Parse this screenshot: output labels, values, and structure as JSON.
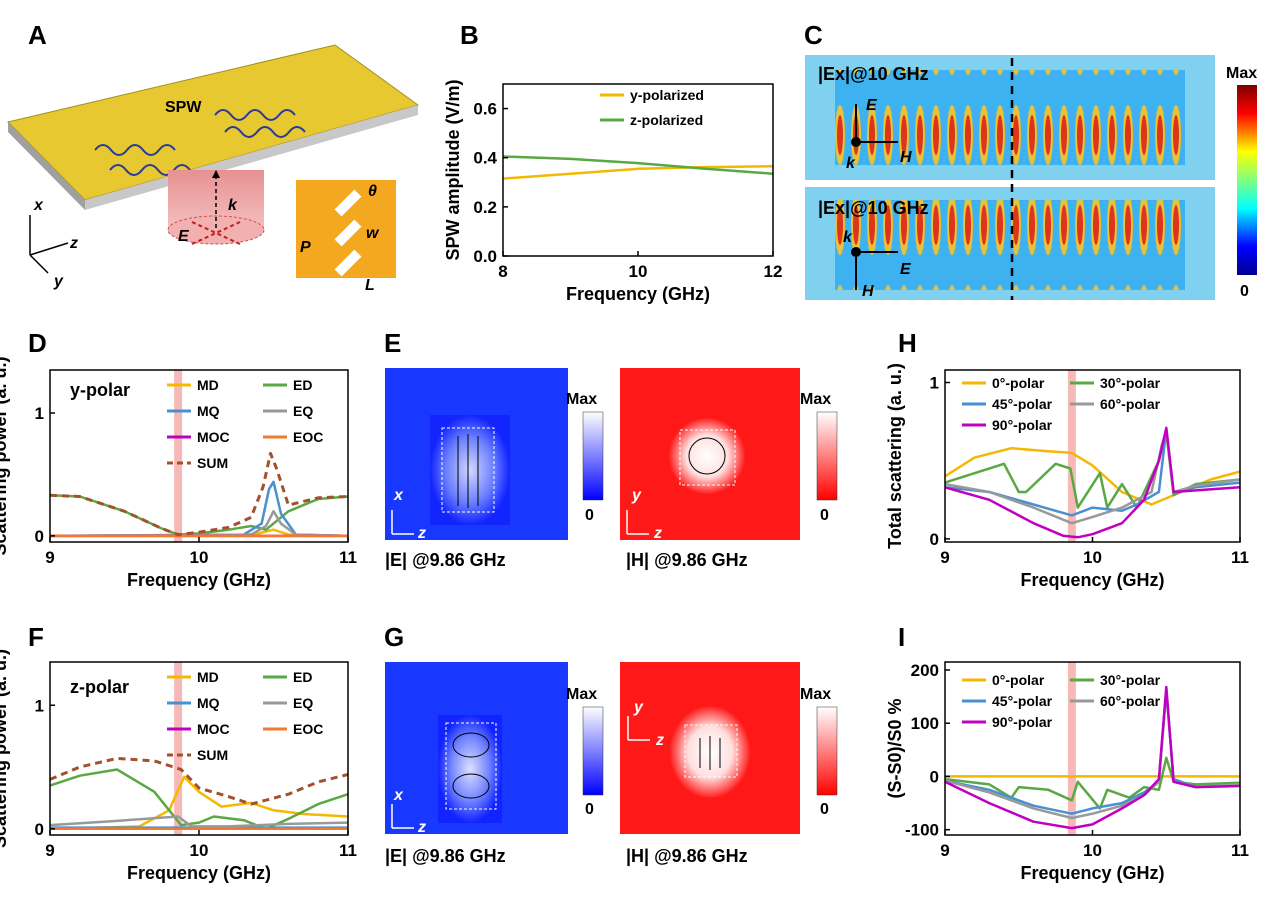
{
  "panel_labels": {
    "A": "A",
    "B": "B",
    "C": "C",
    "D": "D",
    "E": "E",
    "F": "F",
    "G": "G",
    "H": "H",
    "I": "I"
  },
  "colors": {
    "MD": "#f5b800",
    "ED": "#5aa843",
    "MQ": "#4a90d0",
    "EQ": "#999999",
    "MOC": "#c000c0",
    "EOC": "#f07a30",
    "SUM": "#a0522d",
    "highlight": "#f4a0a0",
    "p0": "#f5b800",
    "p30": "#5aa843",
    "p45": "#4a90d0",
    "p60": "#999999",
    "p90": "#c000c0"
  },
  "panelA": {
    "spw": "SPW",
    "k": "k",
    "E": "E",
    "theta": "θ",
    "w": "w",
    "P": "P",
    "L": "L",
    "axis_x": "x",
    "axis_y": "y",
    "axis_z": "z"
  },
  "panelC": {
    "top_label": "|Ex|@10 GHz",
    "bottom_label": "|Ex|@10 GHz",
    "top_E": "E",
    "top_H": "H",
    "top_k": "k",
    "bot_k": "k",
    "bot_E": "E",
    "bot_H": "H",
    "cb_max": "Max",
    "cb_min": "0"
  },
  "panelE": {
    "e_caption": "|E| @9.86 GHz",
    "h_caption": "|H| @9.86 GHz",
    "cb_max": "Max",
    "cb_min": "0",
    "ax_x": "x",
    "ax_z": "z",
    "ax_y": "y"
  },
  "panelG": {
    "e_caption": "|E| @9.86 GHz",
    "h_caption": "|H| @9.86 GHz",
    "cb_max": "Max",
    "cb_min": "0",
    "ax_x": "x",
    "ax_z": "z",
    "ax_y": "y"
  },
  "chart_data": [
    {
      "id": "B",
      "type": "line",
      "xlabel": "Frequency (GHz)",
      "ylabel": "SPW amplitude (V/m)",
      "xlim": [
        8,
        12
      ],
      "ylim": [
        0,
        0.7
      ],
      "xticks": [
        8,
        10,
        12
      ],
      "yticks": [
        0.0,
        0.2,
        0.4,
        0.6
      ],
      "ytick_labels": [
        "0.0",
        "0.2",
        "0.4",
        "0.6"
      ],
      "legend_position": "top-right",
      "series": [
        {
          "name": "y-polarized",
          "color": "#f5b800",
          "x": [
            8,
            9,
            10,
            11,
            12
          ],
          "y": [
            0.315,
            0.335,
            0.355,
            0.362,
            0.365
          ]
        },
        {
          "name": "z-polarized",
          "color": "#5aa843",
          "x": [
            8,
            9,
            10,
            11,
            12
          ],
          "y": [
            0.405,
            0.395,
            0.378,
            0.355,
            0.335
          ]
        }
      ]
    },
    {
      "id": "D",
      "type": "line",
      "annotation": "y-polar",
      "xlabel": "Frequency (GHz)",
      "ylabel": "Scattering power (a. u.)",
      "xlim": [
        9,
        11
      ],
      "ylim": [
        -0.05,
        1.35
      ],
      "xticks": [
        9,
        10,
        11
      ],
      "yticks": [
        0,
        1
      ],
      "highlight_x": 9.86,
      "series": [
        {
          "name": "MD",
          "color": "#f5b800",
          "x": [
            9,
            10.2,
            10.4,
            10.5,
            10.6,
            11
          ],
          "y": [
            0,
            0,
            0.02,
            0.05,
            0.01,
            0
          ]
        },
        {
          "name": "ED",
          "color": "#5aa843",
          "x": [
            9,
            9.2,
            9.5,
            9.75,
            9.86,
            10.0,
            10.2,
            10.35,
            10.45,
            10.6,
            10.8,
            11
          ],
          "y": [
            0.33,
            0.32,
            0.2,
            0.06,
            0.01,
            0.02,
            0.05,
            0.08,
            0.05,
            0.2,
            0.3,
            0.32
          ]
        },
        {
          "name": "MQ",
          "color": "#4a90d0",
          "x": [
            9,
            10.3,
            10.42,
            10.47,
            10.5,
            10.55,
            10.65,
            11
          ],
          "y": [
            0,
            0.01,
            0.1,
            0.38,
            0.44,
            0.18,
            0.01,
            0
          ]
        },
        {
          "name": "EQ",
          "color": "#999999",
          "x": [
            9,
            10.35,
            10.45,
            10.5,
            10.55,
            10.65,
            11
          ],
          "y": [
            0,
            0.01,
            0.08,
            0.2,
            0.1,
            0.01,
            0
          ]
        },
        {
          "name": "MOC",
          "color": "#c000c0",
          "x": [
            9,
            11
          ],
          "y": [
            0,
            0
          ]
        },
        {
          "name": "EOC",
          "color": "#f07a30",
          "x": [
            9,
            11
          ],
          "y": [
            0,
            0
          ]
        },
        {
          "name": "SUM",
          "color": "#a0522d",
          "dashed": true,
          "x": [
            9,
            9.2,
            9.5,
            9.75,
            9.86,
            10.0,
            10.2,
            10.35,
            10.43,
            10.48,
            10.52,
            10.6,
            10.8,
            11
          ],
          "y": [
            0.33,
            0.32,
            0.2,
            0.06,
            0.01,
            0.03,
            0.07,
            0.15,
            0.4,
            0.67,
            0.55,
            0.25,
            0.31,
            0.32
          ]
        }
      ]
    },
    {
      "id": "F",
      "type": "line",
      "annotation": "z-polar",
      "xlabel": "Frequency (GHz)",
      "ylabel": "Scattering power (a. u.)",
      "xlim": [
        9,
        11
      ],
      "ylim": [
        -0.05,
        1.35
      ],
      "xticks": [
        9,
        10,
        11
      ],
      "yticks": [
        0,
        1
      ],
      "highlight_x": 9.86,
      "series": [
        {
          "name": "MD",
          "color": "#f5b800",
          "x": [
            9,
            9.6,
            9.8,
            9.9,
            10.0,
            10.15,
            10.35,
            10.5,
            10.7,
            11
          ],
          "y": [
            0,
            0.02,
            0.15,
            0.42,
            0.3,
            0.18,
            0.21,
            0.15,
            0.12,
            0.1
          ]
        },
        {
          "name": "ED",
          "color": "#5aa843",
          "x": [
            9,
            9.2,
            9.45,
            9.7,
            9.88,
            10.0,
            10.1,
            10.3,
            10.45,
            10.6,
            10.8,
            11
          ],
          "y": [
            0.35,
            0.43,
            0.48,
            0.3,
            0.03,
            0.05,
            0.1,
            0.07,
            0.0,
            0.08,
            0.2,
            0.28
          ]
        },
        {
          "name": "MQ",
          "color": "#4a90d0",
          "x": [
            9,
            11
          ],
          "y": [
            0.01,
            0.01
          ]
        },
        {
          "name": "EQ",
          "color": "#999999",
          "x": [
            9,
            9.4,
            9.86,
            9.95,
            10.2,
            10.6,
            11
          ],
          "y": [
            0.03,
            0.06,
            0.1,
            0.02,
            0.02,
            0.04,
            0.05
          ]
        },
        {
          "name": "MOC",
          "color": "#c000c0",
          "x": [
            9,
            11
          ],
          "y": [
            0,
            0
          ]
        },
        {
          "name": "EOC",
          "color": "#f07a30",
          "x": [
            9,
            11
          ],
          "y": [
            0,
            0
          ]
        },
        {
          "name": "SUM",
          "color": "#a0522d",
          "dashed": true,
          "x": [
            9,
            9.2,
            9.45,
            9.7,
            9.88,
            10.0,
            10.2,
            10.35,
            10.6,
            10.8,
            11
          ],
          "y": [
            0.4,
            0.5,
            0.57,
            0.55,
            0.48,
            0.33,
            0.26,
            0.2,
            0.28,
            0.38,
            0.44
          ]
        }
      ]
    },
    {
      "id": "H",
      "type": "line",
      "xlabel": "Frequency (GHz)",
      "ylabel": "Total scattering (a. u.)",
      "xlim": [
        9,
        11
      ],
      "ylim": [
        -0.02,
        1.08
      ],
      "xticks": [
        9,
        10,
        11
      ],
      "yticks": [
        0,
        1
      ],
      "highlight_x": 9.86,
      "series": [
        {
          "name": "0°-polar",
          "color": "#f5b800",
          "x": [
            9,
            9.2,
            9.45,
            9.7,
            9.86,
            10.0,
            10.2,
            10.4,
            10.6,
            10.8,
            11
          ],
          "y": [
            0.4,
            0.52,
            0.58,
            0.56,
            0.55,
            0.47,
            0.3,
            0.22,
            0.3,
            0.38,
            0.43
          ]
        },
        {
          "name": "30°-polar",
          "color": "#5aa843",
          "x": [
            9,
            9.2,
            9.4,
            9.5,
            9.55,
            9.75,
            9.85,
            9.9,
            10.05,
            10.1,
            10.2,
            10.3,
            10.45,
            10.5,
            10.55,
            10.7,
            11
          ],
          "y": [
            0.36,
            0.42,
            0.48,
            0.3,
            0.3,
            0.48,
            0.45,
            0.2,
            0.42,
            0.2,
            0.35,
            0.2,
            0.5,
            0.68,
            0.28,
            0.35,
            0.38
          ]
        },
        {
          "name": "45°-polar",
          "color": "#4a90d0",
          "x": [
            9,
            9.3,
            9.6,
            9.86,
            10.0,
            10.2,
            10.3,
            10.45,
            10.5,
            10.55,
            10.7,
            11
          ],
          "y": [
            0.33,
            0.3,
            0.22,
            0.15,
            0.2,
            0.18,
            0.22,
            0.3,
            0.7,
            0.3,
            0.33,
            0.36
          ]
        },
        {
          "name": "60°-polar",
          "color": "#999999",
          "x": [
            9,
            9.3,
            9.6,
            9.86,
            10.0,
            10.2,
            10.4,
            10.47,
            10.5,
            10.55,
            10.7,
            11
          ],
          "y": [
            0.35,
            0.3,
            0.2,
            0.1,
            0.14,
            0.2,
            0.3,
            0.6,
            0.69,
            0.3,
            0.34,
            0.38
          ]
        },
        {
          "name": "90°-polar",
          "color": "#c000c0",
          "x": [
            9,
            9.3,
            9.6,
            9.8,
            9.9,
            10.0,
            10.2,
            10.35,
            10.45,
            10.5,
            10.55,
            10.7,
            11
          ],
          "y": [
            0.33,
            0.25,
            0.1,
            0.02,
            0.01,
            0.03,
            0.1,
            0.25,
            0.5,
            0.71,
            0.3,
            0.31,
            0.33
          ]
        }
      ],
      "legend": [
        "0°-polar",
        "30°-polar",
        "45°-polar",
        "60°-polar",
        "90°-polar"
      ]
    },
    {
      "id": "I",
      "type": "line",
      "xlabel": "Frequency (GHz)",
      "ylabel": "(S-S0)/S0 %",
      "xlim": [
        9,
        11
      ],
      "ylim": [
        -110,
        215
      ],
      "xticks": [
        9,
        10,
        11
      ],
      "yticks": [
        -100,
        0,
        100,
        200
      ],
      "highlight_x": 9.86,
      "series": [
        {
          "name": "0°-polar",
          "color": "#f5b800",
          "x": [
            9,
            11
          ],
          "y": [
            0,
            0
          ]
        },
        {
          "name": "30°-polar",
          "color": "#5aa843",
          "x": [
            9,
            9.3,
            9.45,
            9.5,
            9.7,
            9.86,
            9.9,
            10.05,
            10.1,
            10.25,
            10.35,
            10.45,
            10.5,
            10.55,
            10.7,
            11
          ],
          "y": [
            -5,
            -15,
            -40,
            -20,
            -25,
            -45,
            -10,
            -60,
            -25,
            -40,
            -20,
            -25,
            35,
            -10,
            -15,
            -12
          ]
        },
        {
          "name": "45°-polar",
          "color": "#4a90d0",
          "x": [
            9,
            9.3,
            9.6,
            9.86,
            10.0,
            10.2,
            10.35,
            10.45,
            10.5,
            10.55,
            10.7,
            11
          ],
          "y": [
            -8,
            -25,
            -55,
            -70,
            -60,
            -50,
            -30,
            -10,
            160,
            -5,
            -20,
            -15
          ]
        },
        {
          "name": "60°-polar",
          "color": "#999999",
          "x": [
            9,
            9.3,
            9.6,
            9.86,
            10.0,
            10.2,
            10.35,
            10.45,
            10.5,
            10.55,
            10.7,
            11
          ],
          "y": [
            -8,
            -30,
            -60,
            -78,
            -70,
            -55,
            -35,
            -10,
            165,
            -10,
            -20,
            -15
          ]
        },
        {
          "name": "90°-polar",
          "color": "#c000c0",
          "x": [
            9,
            9.3,
            9.6,
            9.86,
            10.0,
            10.2,
            10.35,
            10.45,
            10.5,
            10.55,
            10.7,
            11
          ],
          "y": [
            -10,
            -50,
            -85,
            -97,
            -90,
            -60,
            -35,
            -5,
            168,
            -10,
            -20,
            -18
          ]
        }
      ],
      "legend": [
        "0°-polar",
        "30°-polar",
        "45°-polar",
        "60°-polar",
        "90°-polar"
      ]
    }
  ]
}
